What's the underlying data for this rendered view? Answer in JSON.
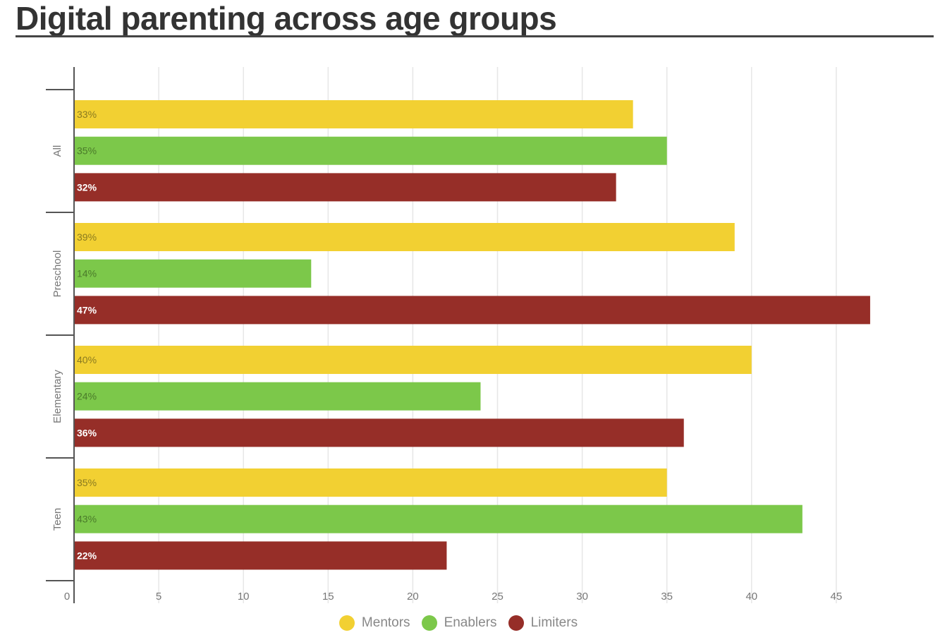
{
  "title": "Digital parenting across age groups",
  "chart_data": {
    "type": "bar",
    "orientation": "horizontal",
    "title": "Digital parenting across age groups",
    "categories": [
      "All",
      "Preschool",
      "Elementary",
      "Teen"
    ],
    "series": [
      {
        "name": "Mentors",
        "color": "#f2d032",
        "label_color": "#8a7a20",
        "values": [
          33,
          39,
          40,
          35
        ],
        "labels": [
          "33%",
          "39%",
          "40%",
          "35%"
        ]
      },
      {
        "name": "Enablers",
        "color": "#7cc84a",
        "label_color": "#4a7a2a",
        "values": [
          35,
          14,
          24,
          43
        ],
        "labels": [
          "35%",
          "14%",
          "24%",
          "43%"
        ]
      },
      {
        "name": "Limiters",
        "color": "#962e28",
        "label_color": "#ffffff",
        "values": [
          32,
          47,
          36,
          22
        ],
        "labels": [
          "32%",
          "47%",
          "36%",
          "22%"
        ]
      }
    ],
    "xlim": [
      0,
      50
    ],
    "xticks": [
      "0",
      "5",
      "10",
      "15",
      "20",
      "25",
      "30",
      "35",
      "40",
      "45"
    ],
    "xlabel": "",
    "ylabel": "",
    "grid": true,
    "legend_position": "bottom-center"
  }
}
